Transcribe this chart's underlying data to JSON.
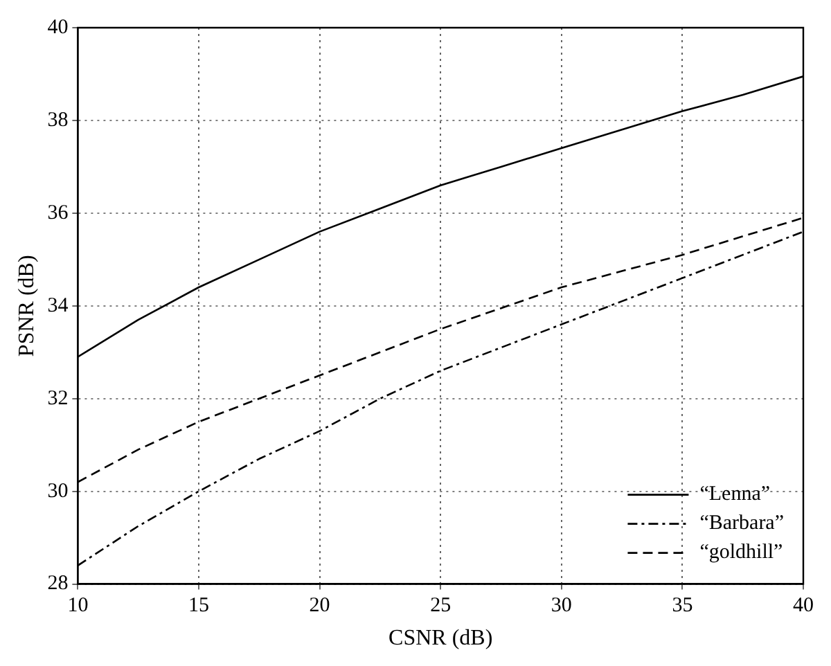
{
  "chart_data": {
    "type": "line",
    "xlabel": "CSNR (dB)",
    "ylabel": "PSNR (dB)",
    "x": [
      10,
      12.5,
      15,
      17.5,
      20,
      22.5,
      25,
      27.5,
      30,
      32.5,
      35,
      37.5,
      40
    ],
    "series": [
      {
        "name": "“Lenna”",
        "color": "#000000",
        "line_style": "solid",
        "values": [
          32.9,
          33.7,
          34.4,
          35.0,
          35.6,
          36.1,
          36.6,
          37.0,
          37.4,
          37.8,
          38.2,
          38.55,
          38.95
        ]
      },
      {
        "name": "“Barbara”",
        "color": "#000000",
        "line_style": "dashdot",
        "values": [
          28.4,
          29.25,
          30.0,
          30.7,
          31.3,
          32.0,
          32.6,
          33.1,
          33.6,
          34.1,
          34.6,
          35.1,
          35.6
        ]
      },
      {
        "name": "“goldhill”",
        "color": "#000000",
        "line_style": "dashed",
        "values": [
          30.2,
          30.9,
          31.5,
          32.0,
          32.5,
          33.0,
          33.5,
          33.95,
          34.4,
          34.75,
          35.1,
          35.5,
          35.9
        ]
      }
    ],
    "xlim": [
      10,
      40
    ],
    "xticks": [
      10,
      15,
      20,
      25,
      30,
      35,
      40
    ],
    "ylim": [
      28,
      40
    ],
    "yticks": [
      28,
      30,
      32,
      34,
      36,
      38,
      40
    ],
    "grid": true,
    "legend": "bottom right",
    "marker": "none"
  }
}
